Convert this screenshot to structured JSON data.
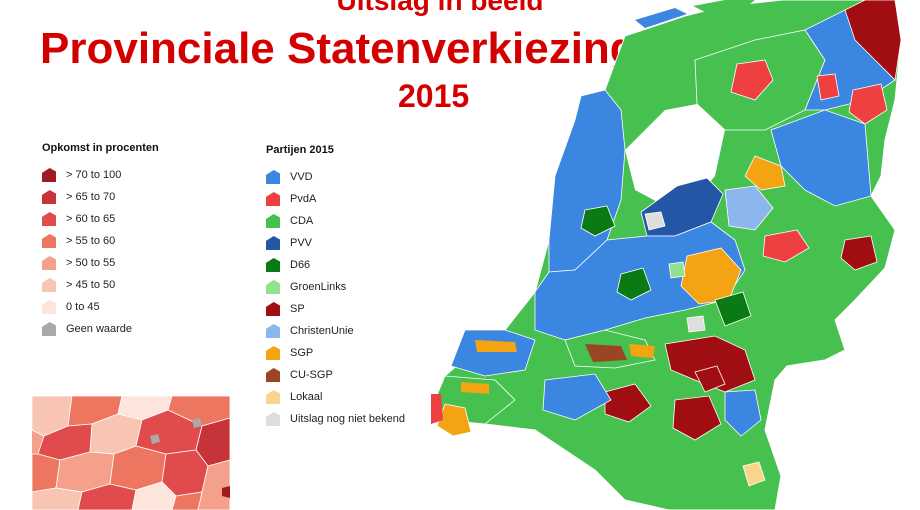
{
  "header": {
    "supertitle": "Uitslag in beeld",
    "title": "Provinciale Statenverkiezingen",
    "year": "2015"
  },
  "turnout_legend": {
    "title": "Opkomst in procenten",
    "items": [
      {
        "label": "> 70 to 100",
        "color": "#9e1b1f"
      },
      {
        "label": "> 65 to 70",
        "color": "#c6343a"
      },
      {
        "label": "> 60 to 65",
        "color": "#e14b4b"
      },
      {
        "label": "> 55 to 60",
        "color": "#ed7661"
      },
      {
        "label": "> 50 to 55",
        "color": "#f4a08a"
      },
      {
        "label": "> 45 to 50",
        "color": "#f8c5b3"
      },
      {
        "label": "0 to 45",
        "color": "#fde4dc"
      },
      {
        "label": "Geen waarde",
        "color": "#a9a9a9"
      }
    ]
  },
  "party_legend": {
    "title": "Partijen 2015",
    "items": [
      {
        "label": "VVD",
        "color": "#3a86e0"
      },
      {
        "label": "PvdA",
        "color": "#ee4040"
      },
      {
        "label": "CDA",
        "color": "#46c150"
      },
      {
        "label": "PVV",
        "color": "#2556a6"
      },
      {
        "label": "D66",
        "color": "#0a7a14"
      },
      {
        "label": "GroenLinks",
        "color": "#8fe28f"
      },
      {
        "label": "SP",
        "color": "#a10e12"
      },
      {
        "label": "ChristenUnie",
        "color": "#8cb6ee"
      },
      {
        "label": "SGP",
        "color": "#f4a313"
      },
      {
        "label": "CU-SGP",
        "color": "#9b4525"
      },
      {
        "label": "Lokaal",
        "color": "#fad48c"
      },
      {
        "label": "Uitslag nog niet bekend",
        "color": "#dedede"
      }
    ]
  }
}
